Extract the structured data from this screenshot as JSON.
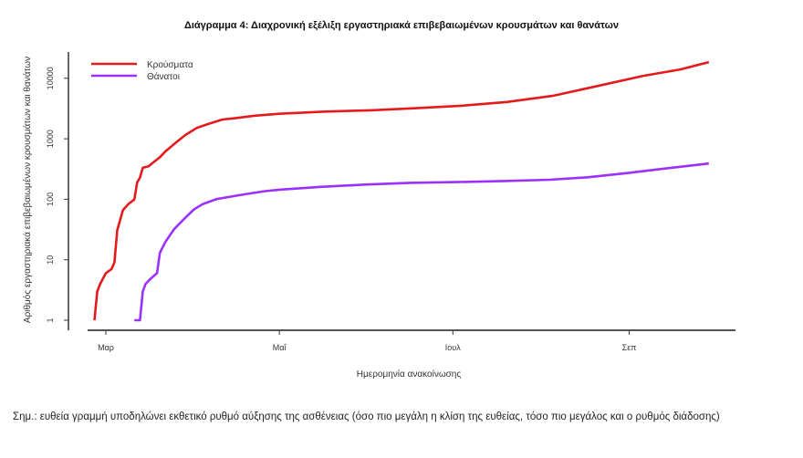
{
  "chart_data": {
    "type": "line",
    "title": "Διάγραμμα 4: Διαχρονική εξέλιξη εργαστηριακά επιβεβαιωμένων κρουσμάτων και θανάτων",
    "xlabel": "Ημερομηνία ανακοίνωσης",
    "ylabel": "Αριθμός εργαστηριακά επιβεβαιωμένων κρουσμάτων και θανάτων",
    "yscale": "log",
    "ylim": [
      0.8,
      30000
    ],
    "xlim": [
      "2020-02-23",
      "2020-10-07"
    ],
    "yticks": [
      {
        "value": 1,
        "label": "1"
      },
      {
        "value": 10,
        "label": "10"
      },
      {
        "value": 100,
        "label": "100"
      },
      {
        "value": 1000,
        "label": "1000"
      },
      {
        "value": 10000,
        "label": "10000"
      }
    ],
    "xticks": [
      {
        "date": "2020-03-01",
        "label": "Μαρ"
      },
      {
        "date": "2020-05-01",
        "label": "Μαΐ"
      },
      {
        "date": "2020-07-01",
        "label": "Ιουλ"
      },
      {
        "date": "2020-09-01",
        "label": "Σεπ"
      }
    ],
    "grid": false,
    "legend": "top-left",
    "series": [
      {
        "name": "Κρούσματα",
        "color": "#e41a1c",
        "points": [
          [
            "2020-02-26",
            1
          ],
          [
            "2020-02-27",
            3
          ],
          [
            "2020-02-28",
            4
          ],
          [
            "2020-03-01",
            6
          ],
          [
            "2020-03-03",
            7
          ],
          [
            "2020-03-04",
            9
          ],
          [
            "2020-03-05",
            31
          ],
          [
            "2020-03-06",
            45
          ],
          [
            "2020-03-07",
            66
          ],
          [
            "2020-03-09",
            84
          ],
          [
            "2020-03-11",
            99
          ],
          [
            "2020-03-12",
            190
          ],
          [
            "2020-03-13",
            228
          ],
          [
            "2020-03-14",
            331
          ],
          [
            "2020-03-16",
            352
          ],
          [
            "2020-03-18",
            418
          ],
          [
            "2020-03-20",
            495
          ],
          [
            "2020-03-22",
            624
          ],
          [
            "2020-03-26",
            892
          ],
          [
            "2020-03-29",
            1156
          ],
          [
            "2020-04-02",
            1514
          ],
          [
            "2020-04-06",
            1755
          ],
          [
            "2020-04-11",
            2081
          ],
          [
            "2020-04-16",
            2207
          ],
          [
            "2020-04-22",
            2401
          ],
          [
            "2020-05-01",
            2591
          ],
          [
            "2020-05-17",
            2819
          ],
          [
            "2020-06-02",
            2952
          ],
          [
            "2020-06-18",
            3203
          ],
          [
            "2020-07-04",
            3519
          ],
          [
            "2020-07-20",
            4048
          ],
          [
            "2020-08-05",
            5123
          ],
          [
            "2020-08-21",
            7472
          ],
          [
            "2020-09-06",
            11000
          ],
          [
            "2020-09-19",
            14000
          ],
          [
            "2020-09-29",
            18475
          ]
        ]
      },
      {
        "name": "Θάνατοι",
        "color": "#9b30ff",
        "points": [
          [
            "2020-03-11",
            1
          ],
          [
            "2020-03-13",
            1
          ],
          [
            "2020-03-14",
            3
          ],
          [
            "2020-03-15",
            4
          ],
          [
            "2020-03-17",
            5
          ],
          [
            "2020-03-19",
            6
          ],
          [
            "2020-03-20",
            13
          ],
          [
            "2020-03-22",
            20
          ],
          [
            "2020-03-25",
            32
          ],
          [
            "2020-03-29",
            50
          ],
          [
            "2020-04-01",
            68
          ],
          [
            "2020-04-04",
            83
          ],
          [
            "2020-04-09",
            101
          ],
          [
            "2020-04-19",
            121
          ],
          [
            "2020-04-26",
            136
          ],
          [
            "2020-05-01",
            144
          ],
          [
            "2020-05-15",
            160
          ],
          [
            "2020-05-31",
            175
          ],
          [
            "2020-06-16",
            187
          ],
          [
            "2020-07-02",
            192
          ],
          [
            "2020-07-19",
            200
          ],
          [
            "2020-08-04",
            210
          ],
          [
            "2020-08-17",
            230
          ],
          [
            "2020-08-31",
            270
          ],
          [
            "2020-09-13",
            320
          ],
          [
            "2020-09-29",
            390
          ]
        ]
      }
    ]
  },
  "note": "Σημ.: ευθεία γραμμή υποδηλώνει εκθετικό ρυθμό αύξησης της ασθένειας (όσο πιο μεγάλη η κλίση της ευθείας, τόσο πιο μεγάλος και ο ρυθμός διάδοσης)"
}
